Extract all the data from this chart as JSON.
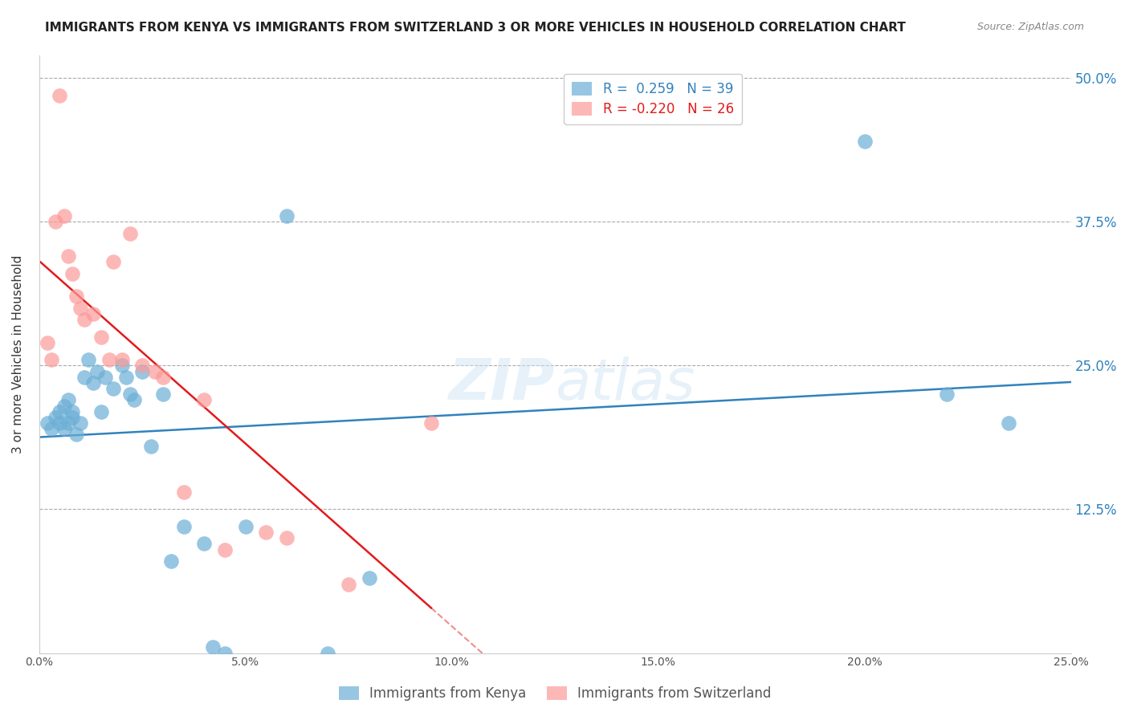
{
  "title": "IMMIGRANTS FROM KENYA VS IMMIGRANTS FROM SWITZERLAND 3 OR MORE VEHICLES IN HOUSEHOLD CORRELATION CHART",
  "source": "Source: ZipAtlas.com",
  "xlabel_bottom": "",
  "ylabel": "3 or more Vehicles in Household",
  "x_ticklabels": [
    "0.0%",
    "5.0%",
    "10.0%",
    "15.0%",
    "20.0%",
    "25.0%"
  ],
  "x_ticks": [
    0.0,
    5.0,
    10.0,
    15.0,
    20.0,
    25.0
  ],
  "y_ticklabels": [
    "12.5%",
    "25.0%",
    "37.5%",
    "50.0%"
  ],
  "y_ticks": [
    12.5,
    25.0,
    37.5,
    50.0
  ],
  "xlim": [
    0.0,
    25.0
  ],
  "ylim": [
    0.0,
    52.0
  ],
  "legend_r_kenya": "R =  0.259",
  "legend_n_kenya": "N = 39",
  "legend_r_swiss": "R = -0.220",
  "legend_n_swiss": "N = 26",
  "kenya_color": "#6baed6",
  "swiss_color": "#fb9a99",
  "kenya_line_color": "#3182bd",
  "swiss_line_color": "#e31a1c",
  "watermark": "ZIPatlas",
  "kenya_x": [
    0.2,
    0.3,
    0.4,
    0.5,
    0.5,
    0.6,
    0.6,
    0.7,
    0.7,
    0.8,
    0.8,
    0.9,
    1.0,
    1.1,
    1.2,
    1.3,
    1.4,
    1.5,
    1.6,
    1.8,
    2.0,
    2.1,
    2.2,
    2.3,
    2.5,
    2.7,
    3.0,
    3.2,
    3.5,
    4.0,
    4.2,
    4.5,
    5.0,
    6.0,
    7.0,
    8.0,
    20.0,
    22.0,
    23.5
  ],
  "kenya_y": [
    20.0,
    19.5,
    20.5,
    21.0,
    20.0,
    19.5,
    21.5,
    20.0,
    22.0,
    21.0,
    20.5,
    19.0,
    20.0,
    24.0,
    25.5,
    23.5,
    24.5,
    21.0,
    24.0,
    23.0,
    25.0,
    24.0,
    22.5,
    22.0,
    24.5,
    18.0,
    22.5,
    8.0,
    11.0,
    9.5,
    0.5,
    0.0,
    11.0,
    38.0,
    0.0,
    6.5,
    44.5,
    22.5,
    20.0
  ],
  "swiss_x": [
    0.2,
    0.3,
    0.4,
    0.5,
    0.6,
    0.7,
    0.8,
    0.9,
    1.0,
    1.1,
    1.3,
    1.5,
    1.7,
    1.8,
    2.0,
    2.2,
    2.5,
    2.8,
    3.0,
    3.5,
    4.0,
    4.5,
    5.5,
    6.0,
    7.5,
    9.5
  ],
  "swiss_y": [
    27.0,
    25.5,
    37.5,
    48.5,
    38.0,
    34.5,
    33.0,
    31.0,
    30.0,
    29.0,
    29.5,
    27.5,
    25.5,
    34.0,
    25.5,
    36.5,
    25.0,
    24.5,
    24.0,
    14.0,
    22.0,
    9.0,
    10.5,
    10.0,
    6.0,
    20.0
  ]
}
